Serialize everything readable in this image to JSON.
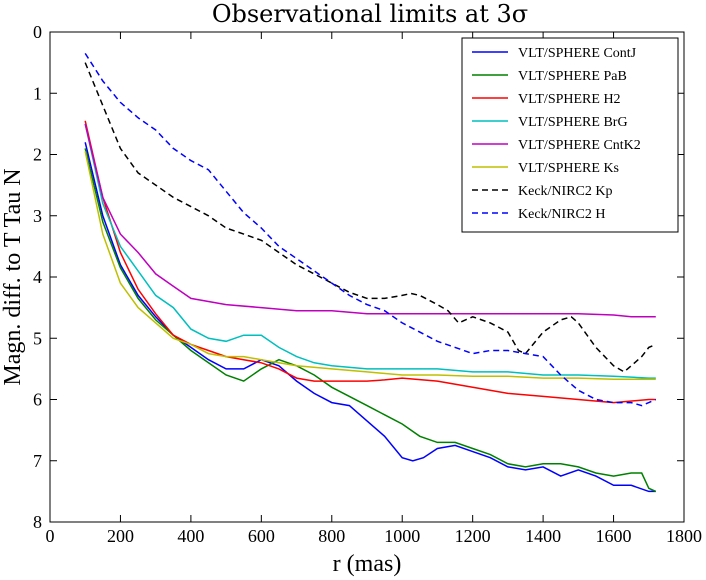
{
  "chart_data": {
    "type": "line",
    "title": "Observational limits at 3σ",
    "xlabel": "r (mas)",
    "ylabel": "Magn. diff. to T Tau N",
    "xlim": [
      0,
      1800
    ],
    "ylim": [
      8,
      0
    ],
    "y_inverted": true,
    "x_ticks": [
      "0",
      "200",
      "400",
      "600",
      "800",
      "1000",
      "1200",
      "1400",
      "1600",
      "1800"
    ],
    "y_ticks": [
      "0",
      "1",
      "2",
      "3",
      "4",
      "5",
      "6",
      "7",
      "8"
    ],
    "grid": false,
    "legend_placement": "top-right",
    "series": [
      {
        "name": "VLT/SPHERE ContJ",
        "color": "#0000ff",
        "dash": "solid",
        "x": [
          100,
          150,
          200,
          250,
          300,
          350,
          400,
          450,
          500,
          550,
          600,
          650,
          700,
          750,
          800,
          850,
          900,
          950,
          1000,
          1030,
          1060,
          1100,
          1150,
          1200,
          1250,
          1300,
          1350,
          1400,
          1450,
          1500,
          1550,
          1600,
          1650,
          1700,
          1720
        ],
        "y": [
          1.8,
          3.0,
          3.8,
          4.3,
          4.65,
          4.95,
          5.15,
          5.35,
          5.5,
          5.5,
          5.35,
          5.45,
          5.7,
          5.9,
          6.05,
          6.1,
          6.35,
          6.6,
          6.95,
          7.0,
          6.95,
          6.8,
          6.75,
          6.85,
          6.95,
          7.1,
          7.15,
          7.1,
          7.25,
          7.15,
          7.25,
          7.4,
          7.4,
          7.5,
          7.5
        ]
      },
      {
        "name": "VLT/SPHERE PaB",
        "color": "#008000",
        "dash": "solid",
        "x": [
          100,
          150,
          200,
          250,
          300,
          350,
          400,
          450,
          500,
          550,
          600,
          650,
          700,
          750,
          800,
          850,
          900,
          950,
          1000,
          1050,
          1100,
          1150,
          1200,
          1250,
          1300,
          1350,
          1400,
          1450,
          1500,
          1550,
          1600,
          1650,
          1680,
          1700,
          1720
        ],
        "y": [
          1.9,
          3.1,
          3.85,
          4.35,
          4.7,
          4.95,
          5.2,
          5.4,
          5.6,
          5.7,
          5.5,
          5.35,
          5.45,
          5.6,
          5.8,
          5.95,
          6.1,
          6.25,
          6.4,
          6.6,
          6.7,
          6.7,
          6.8,
          6.9,
          7.05,
          7.1,
          7.05,
          7.05,
          7.1,
          7.2,
          7.25,
          7.2,
          7.2,
          7.45,
          7.5
        ]
      },
      {
        "name": "VLT/SPHERE H2",
        "color": "#ff0000",
        "dash": "solid",
        "x": [
          100,
          150,
          200,
          250,
          300,
          350,
          400,
          450,
          500,
          550,
          600,
          650,
          700,
          750,
          800,
          850,
          900,
          950,
          1000,
          1100,
          1200,
          1300,
          1400,
          1500,
          1600,
          1700,
          1720
        ],
        "y": [
          1.45,
          2.7,
          3.6,
          4.2,
          4.6,
          4.95,
          5.1,
          5.2,
          5.3,
          5.35,
          5.4,
          5.5,
          5.65,
          5.7,
          5.7,
          5.7,
          5.7,
          5.68,
          5.65,
          5.7,
          5.8,
          5.9,
          5.95,
          6.0,
          6.05,
          6.0,
          6.0
        ]
      },
      {
        "name": "VLT/SPHERE BrG",
        "color": "#00bfbf",
        "dash": "solid",
        "x": [
          100,
          150,
          200,
          250,
          300,
          350,
          400,
          450,
          500,
          550,
          600,
          650,
          700,
          750,
          800,
          900,
          1000,
          1100,
          1200,
          1300,
          1400,
          1500,
          1600,
          1700,
          1720
        ],
        "y": [
          1.5,
          2.8,
          3.5,
          3.9,
          4.3,
          4.5,
          4.85,
          5.0,
          5.05,
          4.95,
          4.95,
          5.15,
          5.3,
          5.4,
          5.45,
          5.5,
          5.5,
          5.5,
          5.55,
          5.55,
          5.6,
          5.6,
          5.62,
          5.65,
          5.65
        ]
      },
      {
        "name": "VLT/SPHERE CntK2",
        "color": "#bf00bf",
        "dash": "solid",
        "x": [
          100,
          150,
          200,
          250,
          300,
          350,
          400,
          500,
          600,
          700,
          800,
          900,
          1000,
          1100,
          1200,
          1300,
          1400,
          1500,
          1600,
          1650,
          1700,
          1720
        ],
        "y": [
          1.5,
          2.7,
          3.3,
          3.6,
          3.95,
          4.15,
          4.35,
          4.45,
          4.5,
          4.55,
          4.55,
          4.6,
          4.6,
          4.6,
          4.6,
          4.6,
          4.6,
          4.6,
          4.62,
          4.65,
          4.65,
          4.65
        ]
      },
      {
        "name": "VLT/SPHERE Ks",
        "color": "#bfbf00",
        "dash": "solid",
        "x": [
          100,
          150,
          200,
          250,
          300,
          350,
          400,
          450,
          500,
          550,
          600,
          650,
          700,
          800,
          900,
          1000,
          1100,
          1200,
          1300,
          1400,
          1500,
          1600,
          1700,
          1720
        ],
        "y": [
          1.95,
          3.3,
          4.1,
          4.5,
          4.75,
          5.0,
          5.1,
          5.25,
          5.3,
          5.3,
          5.35,
          5.4,
          5.45,
          5.5,
          5.55,
          5.6,
          5.6,
          5.62,
          5.62,
          5.65,
          5.65,
          5.67,
          5.67,
          5.67
        ]
      },
      {
        "name": "Keck/NIRC2 Kp",
        "color": "#000000",
        "dash": "dashed",
        "x": [
          100,
          150,
          200,
          250,
          300,
          350,
          400,
          450,
          500,
          550,
          600,
          650,
          700,
          750,
          800,
          850,
          900,
          950,
          1000,
          1025,
          1050,
          1100,
          1130,
          1160,
          1200,
          1250,
          1300,
          1330,
          1350,
          1400,
          1450,
          1480,
          1500,
          1550,
          1600,
          1630,
          1650,
          1680,
          1700,
          1720
        ],
        "y": [
          0.5,
          1.2,
          1.9,
          2.3,
          2.5,
          2.7,
          2.85,
          3.0,
          3.2,
          3.3,
          3.4,
          3.6,
          3.8,
          3.95,
          4.1,
          4.25,
          4.35,
          4.35,
          4.3,
          4.27,
          4.3,
          4.45,
          4.55,
          4.75,
          4.65,
          4.75,
          4.9,
          5.2,
          5.25,
          4.9,
          4.7,
          4.65,
          4.75,
          5.15,
          5.45,
          5.55,
          5.45,
          5.3,
          5.15,
          5.1
        ]
      },
      {
        "name": "Keck/NIRC2 H",
        "color": "#0000ff",
        "dash": "dashed",
        "x": [
          100,
          150,
          200,
          250,
          300,
          350,
          400,
          450,
          500,
          550,
          600,
          650,
          700,
          750,
          800,
          850,
          900,
          950,
          1000,
          1050,
          1100,
          1150,
          1200,
          1250,
          1300,
          1350,
          1400,
          1450,
          1500,
          1550,
          1600,
          1650,
          1680,
          1700,
          1720
        ],
        "y": [
          0.35,
          0.8,
          1.15,
          1.4,
          1.6,
          1.9,
          2.1,
          2.25,
          2.6,
          2.95,
          3.2,
          3.5,
          3.7,
          3.9,
          4.1,
          4.3,
          4.45,
          4.55,
          4.75,
          4.9,
          5.05,
          5.15,
          5.25,
          5.2,
          5.2,
          5.25,
          5.3,
          5.6,
          5.85,
          6.0,
          6.05,
          6.05,
          6.1,
          6.05,
          6.0
        ]
      }
    ]
  }
}
